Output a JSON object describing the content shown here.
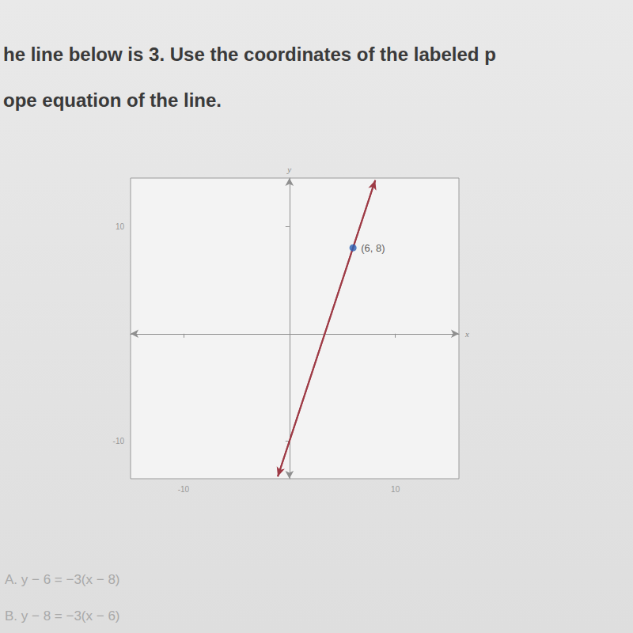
{
  "header": {
    "lines": [
      "he line below is 3. Use the coordinates of the labeled p",
      "ope equation of the line."
    ]
  },
  "chart_data": {
    "type": "line",
    "xlabel": "x",
    "ylabel": "y",
    "xlim": [
      -15,
      16
    ],
    "ylim": [
      -13.5,
      14.5
    ],
    "xticks": [
      -10,
      10
    ],
    "yticks": [
      -10,
      10
    ],
    "grid": false,
    "series": [
      {
        "type": "line",
        "color": "#9e3a45",
        "x": [
          -1.1,
          8.1
        ],
        "values": [
          -13.3,
          14.3
        ]
      },
      {
        "type": "scatter",
        "color": "#2b5fb4",
        "x": [
          6
        ],
        "values": [
          8
        ]
      }
    ],
    "annotations": [
      {
        "x": 6,
        "y": 8,
        "text": "(6, 8)"
      }
    ]
  },
  "choices": [
    "A. y − 6 = −3(x − 8)",
    "B. y − 8 = −3(x − 6)"
  ]
}
